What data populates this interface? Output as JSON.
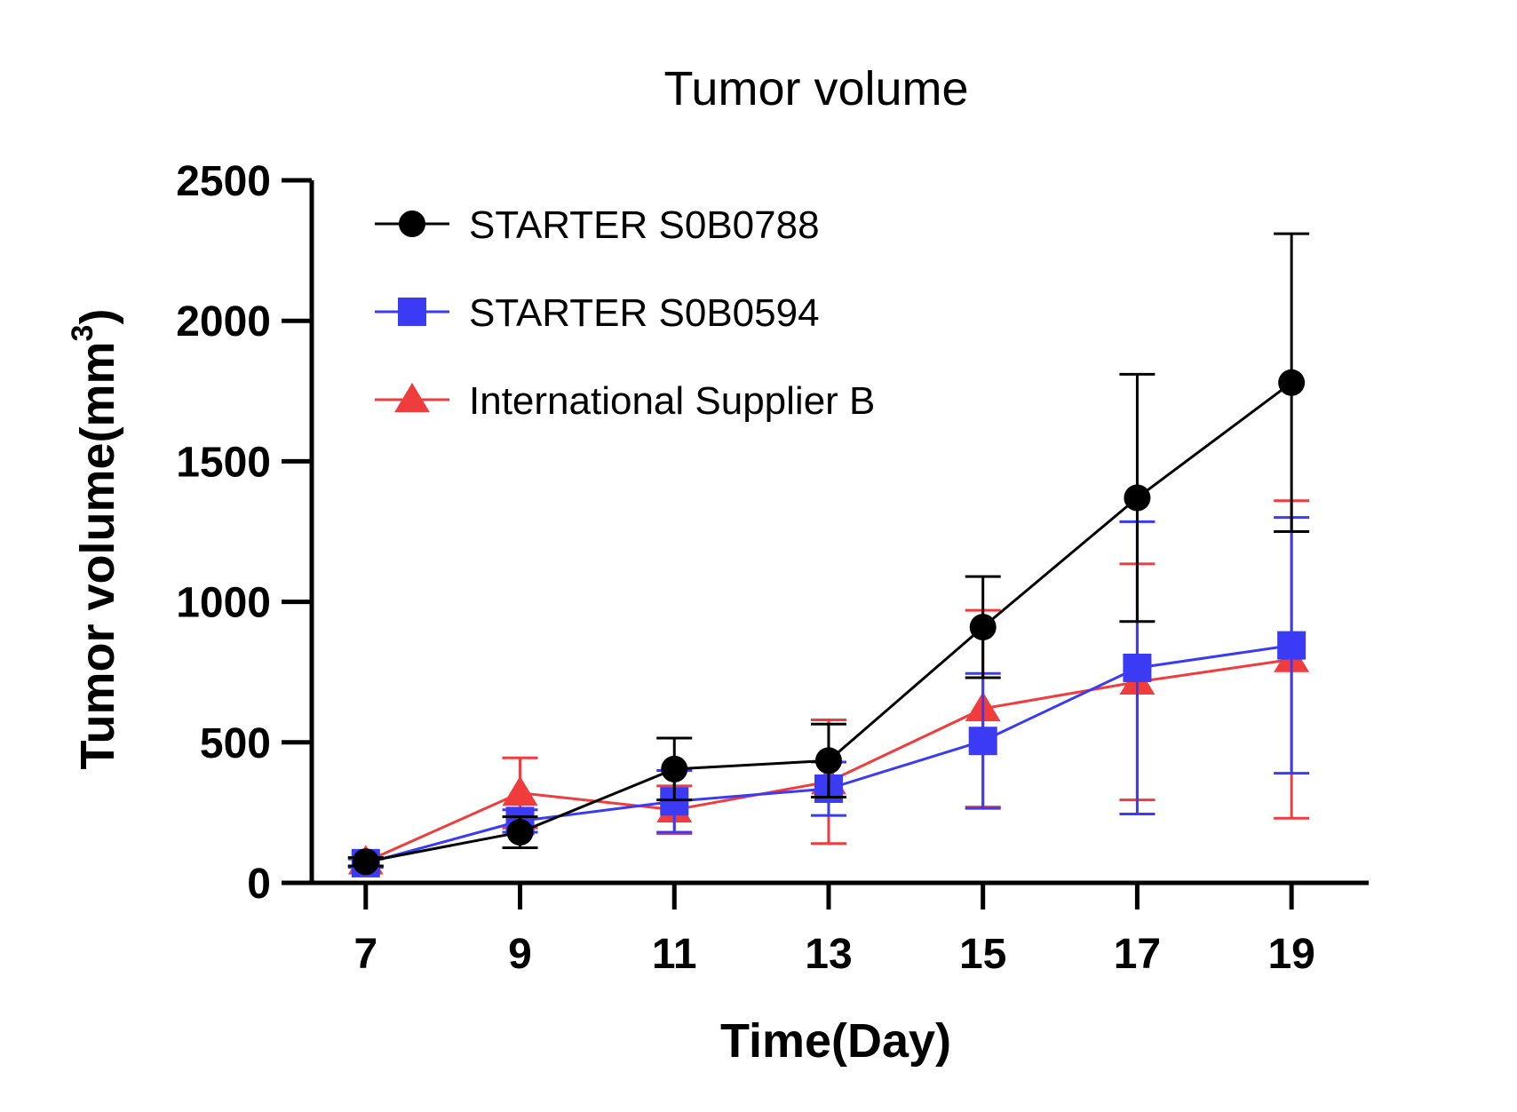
{
  "chart_data": {
    "type": "line",
    "title": "Tumor volume",
    "xlabel": "Time(Day)",
    "ylabel": "Tumor volume(mm",
    "ylabel_superscript": "3",
    "ylabel_close": ")",
    "x": [
      7,
      9,
      11,
      13,
      15,
      17,
      19
    ],
    "x_tick_labels": [
      "7",
      "9",
      "11",
      "13",
      "15",
      "17",
      "19"
    ],
    "y_ticks": [
      0,
      500,
      1000,
      1500,
      2000,
      2500
    ],
    "y_tick_labels": [
      "0",
      "500",
      "1000",
      "1500",
      "2000",
      "2500"
    ],
    "xlim": [
      6.3,
      20.0
    ],
    "ylim": [
      0,
      2500
    ],
    "grid": false,
    "legend_position": "top-left",
    "series": [
      {
        "name": "STARTER S0B0788",
        "color": "#000000",
        "marker": "circle",
        "values": [
          75,
          180,
          405,
          435,
          910,
          1370,
          1780
        ],
        "error": [
          15,
          55,
          110,
          130,
          180,
          440,
          530
        ]
      },
      {
        "name": "STARTER S0B0594",
        "color": "#3b3bf5",
        "marker": "square",
        "values": [
          70,
          220,
          290,
          335,
          505,
          765,
          845
        ],
        "error": [
          15,
          40,
          110,
          95,
          240,
          520,
          455
        ]
      },
      {
        "name": "International Supplier B",
        "color": "#f03c3c",
        "marker": "triangle",
        "values": [
          75,
          320,
          260,
          360,
          620,
          715,
          795
        ],
        "error": [
          15,
          125,
          85,
          220,
          350,
          420,
          565
        ]
      }
    ]
  }
}
